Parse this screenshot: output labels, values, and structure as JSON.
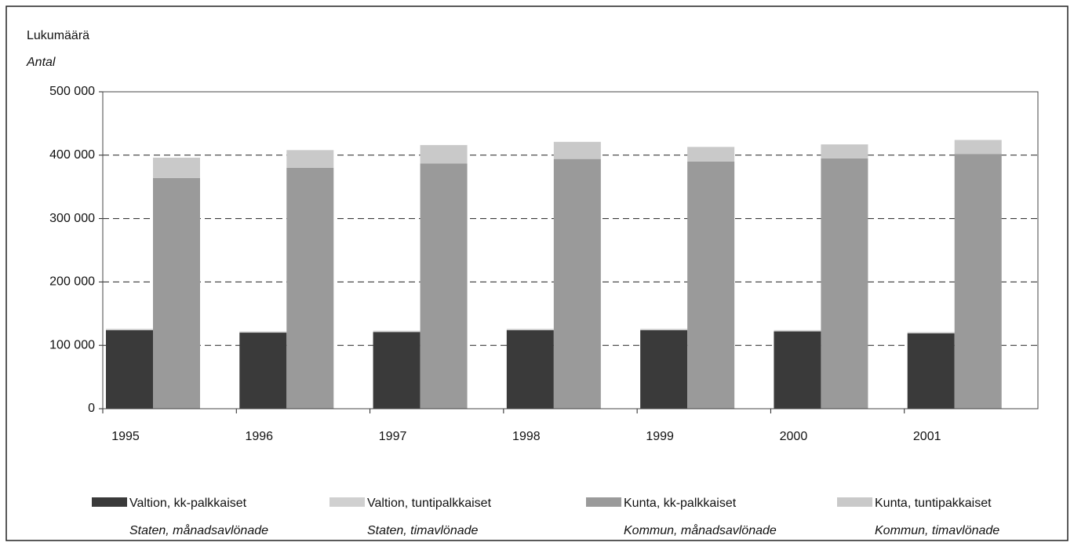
{
  "chart_data": {
    "type": "bar",
    "title": "Lukumäärä",
    "subtitle": "Antal",
    "categories": [
      "1995",
      "1996",
      "1997",
      "1998",
      "1999",
      "2000",
      "2001"
    ],
    "series": [
      {
        "name": "Valtion, kk-palkkaiset",
        "name_sv": "Staten, månadsavlönade",
        "color": "#3a3a3a",
        "values": [
          124000,
          120000,
          121000,
          124000,
          124000,
          122000,
          119000
        ]
      },
      {
        "name": "Valtion, tuntipalkkaiset",
        "name_sv": "Staten, timavlönade",
        "color": "#d0d0d0",
        "values": [
          2000,
          2000,
          2000,
          2000,
          2000,
          2000,
          2000
        ]
      },
      {
        "name": "Kunta, kk-palkkaiset",
        "name_sv": "Kommun, månadsavlönade",
        "color": "#9a9a9a",
        "values": [
          364000,
          380000,
          387000,
          394000,
          390000,
          395000,
          402000
        ]
      },
      {
        "name": "Kunta, tuntipakkaiset",
        "name_sv": "Kommun, timavlönade",
        "color": "#c9c9c9",
        "values": [
          32000,
          28000,
          29000,
          27000,
          23000,
          22000,
          22000
        ]
      }
    ],
    "ylim": [
      0,
      500000
    ],
    "yticks": [
      0,
      {
        "value": 100000,
        "label": "100 000"
      },
      {
        "value": 200000,
        "label": "200 000"
      },
      {
        "value": 300000,
        "label": "300 000"
      },
      {
        "value": 400000,
        "label": "400 000"
      },
      {
        "value": 500000,
        "label": "500 000"
      }
    ],
    "grid": true
  }
}
